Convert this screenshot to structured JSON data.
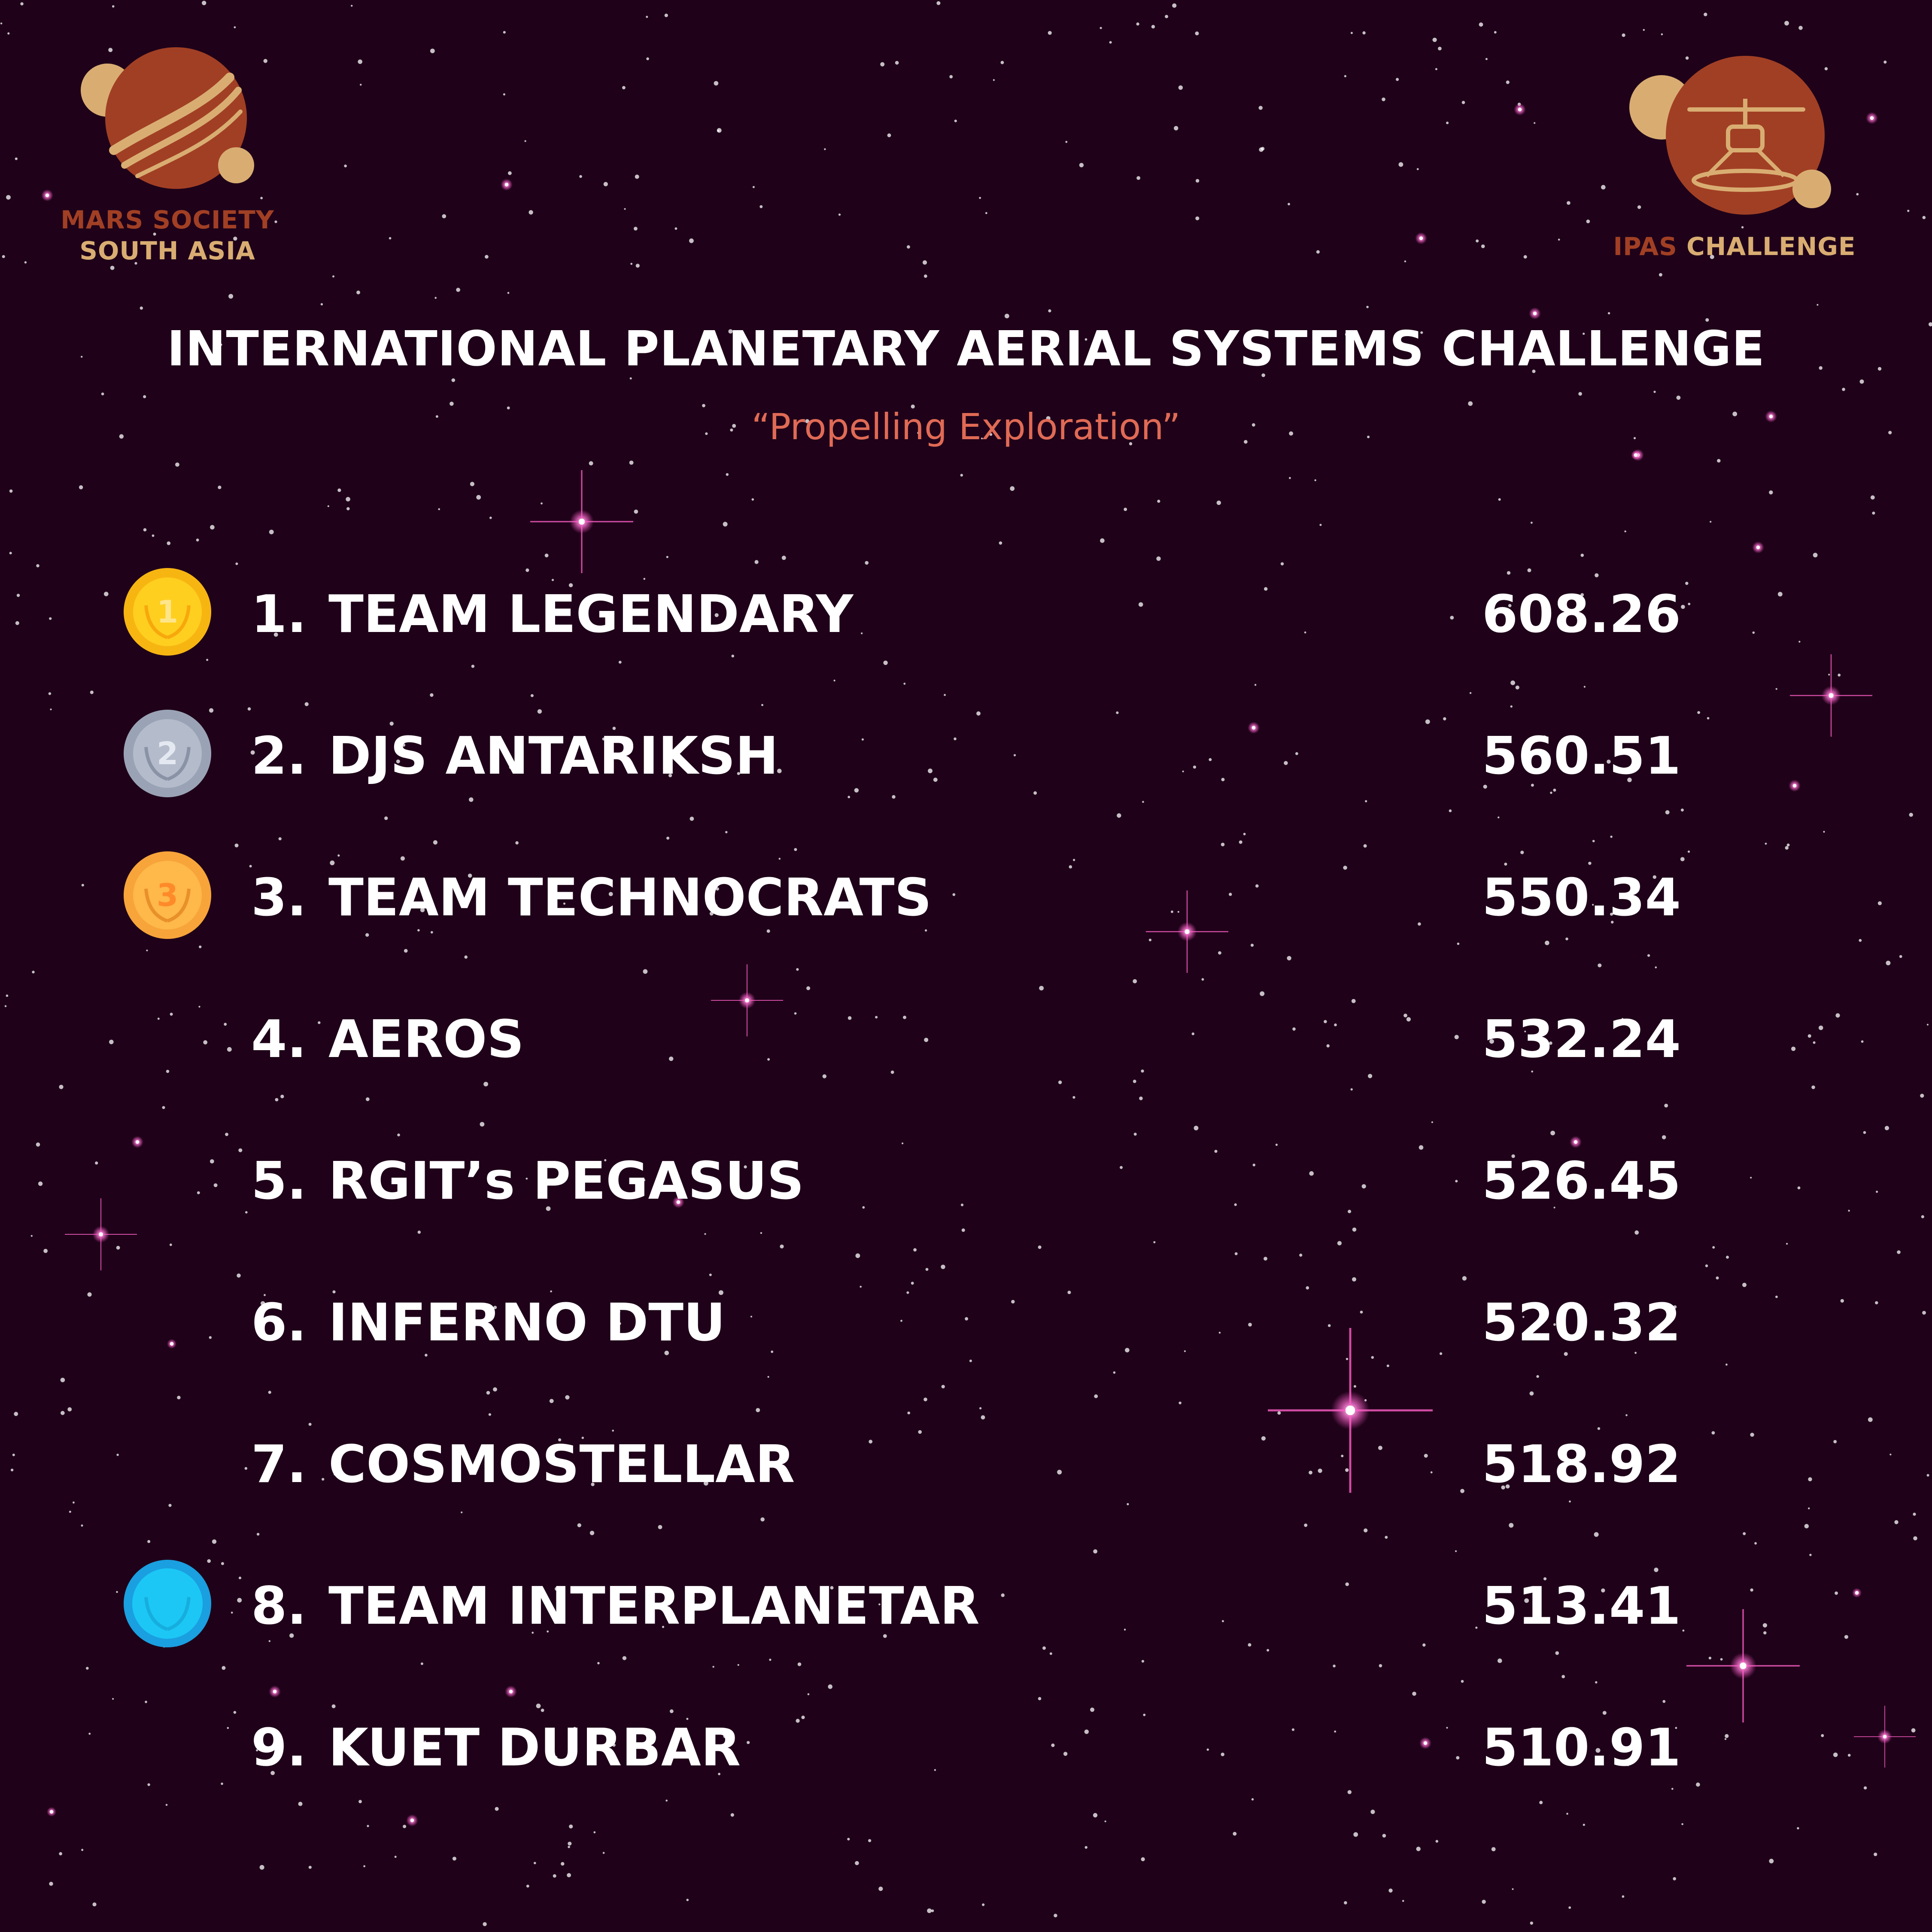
{
  "logos": {
    "left": {
      "line1": "MARS SOCIETY",
      "line2": "SOUTH ASIA",
      "icon": "mars-planet-icon"
    },
    "right": {
      "label_accent": "IPAS",
      "label_rest": " CHALLENGE",
      "icon": "mars-helicopter-icon"
    }
  },
  "header": {
    "title": "INTERNATIONAL PLANETARY AERIAL SYSTEMS CHALLENGE",
    "subtitle": "“Propelling Exploration”"
  },
  "leaderboard": [
    {
      "rank": "1.",
      "team": "TEAM LEGENDARY",
      "score": "608.26",
      "medal": "gold-medal-icon",
      "medal_label": "1"
    },
    {
      "rank": "2.",
      "team": "DJS ANTARIKSH",
      "score": "560.51",
      "medal": "silver-medal-icon",
      "medal_label": "2"
    },
    {
      "rank": "3.",
      "team": "TEAM TECHNOCRATS",
      "score": "550.34",
      "medal": "bronze-medal-icon",
      "medal_label": "3"
    },
    {
      "rank": "4.",
      "team": "AEROS",
      "score": "532.24",
      "medal": null
    },
    {
      "rank": "5.",
      "team": "RGIT’s PEGASUS",
      "score": "526.45",
      "medal": null
    },
    {
      "rank": "6.",
      "team": "INFERNO DTU",
      "score": "520.32",
      "medal": null
    },
    {
      "rank": "7.",
      "team": "COSMOSTELLAR",
      "score": "518.92",
      "medal": null
    },
    {
      "rank": "8.",
      "team": "TEAM INTERPLANETAR",
      "score": "513.41",
      "medal": "blue-medal-icon"
    },
    {
      "rank": "9.",
      "team": "KUET DURBAR",
      "score": "510.91",
      "medal": null
    }
  ],
  "colors": {
    "background": "#1f0219",
    "mars_red": "#a13f24",
    "mars_tan": "#d9ad72",
    "subtitle": "#e06a55",
    "gold": "#f7b512",
    "silver": "#9aa3b5",
    "bronze": "#f7a43a",
    "blue": "#1cc7f5",
    "star_pink": "#ff4fc3"
  }
}
